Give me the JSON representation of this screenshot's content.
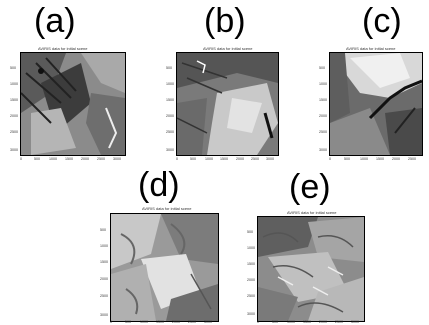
{
  "panels": [
    {
      "label": "(a)",
      "title": "AVIRIS data for initial scene",
      "yticks": [
        "500",
        "1000",
        "1500",
        "2000",
        "2500",
        "3000"
      ],
      "xticks": [
        "0",
        "500",
        "1000",
        "1500",
        "2000",
        "2500",
        "3000"
      ]
    },
    {
      "label": "(b)",
      "title": "AVIRIS data for initial scene",
      "yticks": [
        "500",
        "1000",
        "1500",
        "2000",
        "2500",
        "3000"
      ],
      "xticks": [
        "0",
        "500",
        "1000",
        "1500",
        "2000",
        "2500",
        "3000"
      ]
    },
    {
      "label": "(c)",
      "title": "AVIRIS data for initial scene",
      "yticks": [
        "500",
        "1000",
        "1500",
        "2000",
        "2500",
        "3000"
      ],
      "xticks": [
        "0",
        "500",
        "1000",
        "1500",
        "2000",
        "2500"
      ]
    },
    {
      "label": "(d)",
      "title": "AVIRIS data for initial scene",
      "yticks": [
        "500",
        "1000",
        "1500",
        "2000",
        "2500",
        "3000"
      ],
      "xticks": [
        "0",
        "500",
        "1000",
        "1500",
        "2000",
        "2500",
        "3000"
      ]
    },
    {
      "label": "(e)",
      "title": "AVIRIS data for initial scene",
      "yticks": [
        "500",
        "1000",
        "1500",
        "2000",
        "2500",
        "3000"
      ],
      "xticks": [
        "0",
        "500",
        "1000",
        "1500",
        "2000",
        "2500",
        "3000"
      ]
    }
  ]
}
